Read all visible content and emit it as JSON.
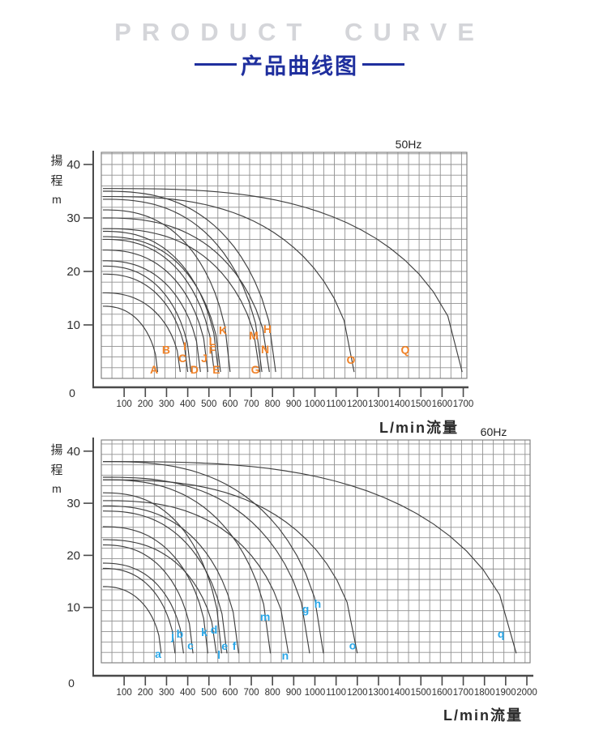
{
  "page": {
    "title": "PRODUCT CURVE",
    "subtitle": "产品曲线图"
  },
  "colors": {
    "title_gray": "#d4d5d9",
    "subtitle_navy": "#1f2f9e",
    "curve": "#404040",
    "grid": "#919191",
    "grid_border": "#7a7a7a",
    "axis": "#4a4a4a",
    "tick_text": "#2f2f2f",
    "series_label_50hz": "#f08228",
    "series_label_60hz": "#2aa7e8"
  },
  "chart_data": [
    {
      "type": "line",
      "title": "50Hz",
      "xlabel": "L/min流量",
      "ylabel": "揚程 m",
      "ylabel_stack": [
        "揚",
        "程",
        "m"
      ],
      "xlim": [
        0,
        1750
      ],
      "ylim": [
        0,
        40
      ],
      "x_ticks": [
        100,
        200,
        300,
        400,
        500,
        600,
        700,
        800,
        900,
        1000,
        1100,
        1200,
        1300,
        1400,
        1500,
        1600,
        1700
      ],
      "y_ticks": [
        0,
        10,
        20,
        30,
        40
      ],
      "zero_label": "0",
      "grid": true,
      "legend": "letters at curve ends",
      "series_label_color": "#f08228",
      "series": [
        {
          "name": "A",
          "shutoff_head_m": 13.5,
          "max_flow_lmin": 258,
          "label_at": [
            241,
            1.5
          ]
        },
        {
          "name": "B",
          "shutoff_head_m": 16.0,
          "max_flow_lmin": 365,
          "label_at": [
            298,
            5.2
          ]
        },
        {
          "name": "C",
          "shutoff_head_m": 19.5,
          "max_flow_lmin": 400,
          "label_at": [
            375,
            3.6
          ]
        },
        {
          "name": "I",
          "shutoff_head_m": 21.0,
          "max_flow_lmin": 415,
          "label_at": [
            386,
            5.9
          ]
        },
        {
          "name": "D",
          "shutoff_head_m": 22.0,
          "max_flow_lmin": 460,
          "label_at": [
            432,
            1.5
          ]
        },
        {
          "name": "J",
          "shutoff_head_m": 24.0,
          "max_flow_lmin": 495,
          "label_at": [
            478,
            3.6
          ]
        },
        {
          "name": "F",
          "shutoff_head_m": 26.0,
          "max_flow_lmin": 525,
          "label_at": [
            516,
            5.2
          ]
        },
        {
          "name": "L",
          "shutoff_head_m": 27.5,
          "max_flow_lmin": 545,
          "label_at": [
            516,
            6.8
          ]
        },
        {
          "name": "E",
          "shutoff_head_m": 26.5,
          "max_flow_lmin": 555,
          "label_at": [
            535,
            1.5
          ]
        },
        {
          "name": "K",
          "shutoff_head_m": 31.5,
          "max_flow_lmin": 600,
          "label_at": [
            566,
            8.9
          ]
        },
        {
          "name": "G",
          "shutoff_head_m": 28.0,
          "max_flow_lmin": 740,
          "label_at": [
            719,
            1.5
          ]
        },
        {
          "name": "M",
          "shutoff_head_m": 33.5,
          "max_flow_lmin": 750,
          "label_at": [
            711,
            7.9
          ]
        },
        {
          "name": "N",
          "shutoff_head_m": 30.0,
          "max_flow_lmin": 785,
          "label_at": [
            765,
            5.3
          ]
        },
        {
          "name": "H",
          "shutoff_head_m": 35.0,
          "max_flow_lmin": 815,
          "label_at": [
            776,
            9.1
          ]
        },
        {
          "name": "O",
          "shutoff_head_m": 34.0,
          "max_flow_lmin": 1185,
          "label_at": [
            1170,
            3.3
          ]
        },
        {
          "name": "Q",
          "shutoff_head_m": 35.5,
          "max_flow_lmin": 1695,
          "label_at": [
            1426,
            5.2
          ]
        }
      ]
    },
    {
      "type": "line",
      "title": "60Hz",
      "xlabel": "L/min流量",
      "ylabel": "揚程 m",
      "ylabel_stack": [
        "揚",
        "程",
        "m"
      ],
      "xlim": [
        0,
        2050
      ],
      "ylim": [
        0,
        40
      ],
      "x_ticks": [
        100,
        200,
        300,
        400,
        500,
        600,
        700,
        800,
        900,
        1000,
        1100,
        1200,
        1300,
        1400,
        1500,
        1600,
        1700,
        1800,
        1900,
        2000
      ],
      "y_ticks": [
        0,
        10,
        20,
        30,
        40
      ],
      "zero_label": "0",
      "grid": true,
      "legend": "letters at curve ends",
      "series_label_color": "#2aa7e8",
      "series": [
        {
          "name": "a",
          "shutoff_head_m": 14.0,
          "max_flow_lmin": 275,
          "label_at": [
            260,
            0.9
          ]
        },
        {
          "name": "j",
          "shutoff_head_m": 17.5,
          "max_flow_lmin": 340,
          "label_at": [
            329,
            4.4
          ]
        },
        {
          "name": "b",
          "shutoff_head_m": 18.5,
          "max_flow_lmin": 380,
          "label_at": [
            363,
            4.8
          ]
        },
        {
          "name": "c",
          "shutoff_head_m": 22.0,
          "max_flow_lmin": 425,
          "label_at": [
            413,
            2.6
          ]
        },
        {
          "name": "k",
          "shutoff_head_m": 25.5,
          "max_flow_lmin": 495,
          "label_at": [
            478,
            5.1
          ]
        },
        {
          "name": "d",
          "shutoff_head_m": 23.0,
          "max_flow_lmin": 535,
          "label_at": [
            524,
            5.6
          ]
        },
        {
          "name": "l",
          "shutoff_head_m": 32.0,
          "max_flow_lmin": 560,
          "label_at": [
            547,
            0.8
          ]
        },
        {
          "name": "e",
          "shutoff_head_m": 28.5,
          "max_flow_lmin": 585,
          "label_at": [
            574,
            2.5
          ]
        },
        {
          "name": "f",
          "shutoff_head_m": 29.5,
          "max_flow_lmin": 640,
          "label_at": [
            620,
            2.5
          ]
        },
        {
          "name": "m",
          "shutoff_head_m": 34.5,
          "max_flow_lmin": 790,
          "label_at": [
            765,
            8.1
          ]
        },
        {
          "name": "n",
          "shutoff_head_m": 30.5,
          "max_flow_lmin": 875,
          "label_at": [
            860,
            0.6
          ]
        },
        {
          "name": "g",
          "shutoff_head_m": 35.0,
          "max_flow_lmin": 975,
          "label_at": [
            956,
            9.6
          ]
        },
        {
          "name": "h",
          "shutoff_head_m": 38.0,
          "max_flow_lmin": 1040,
          "label_at": [
            1013,
            10.6
          ]
        },
        {
          "name": "o",
          "shutoff_head_m": 34.5,
          "max_flow_lmin": 1200,
          "label_at": [
            1178,
            2.6
          ]
        },
        {
          "name": "q",
          "shutoff_head_m": 38.0,
          "max_flow_lmin": 1950,
          "label_at": [
            1878,
            4.8
          ]
        }
      ]
    }
  ]
}
